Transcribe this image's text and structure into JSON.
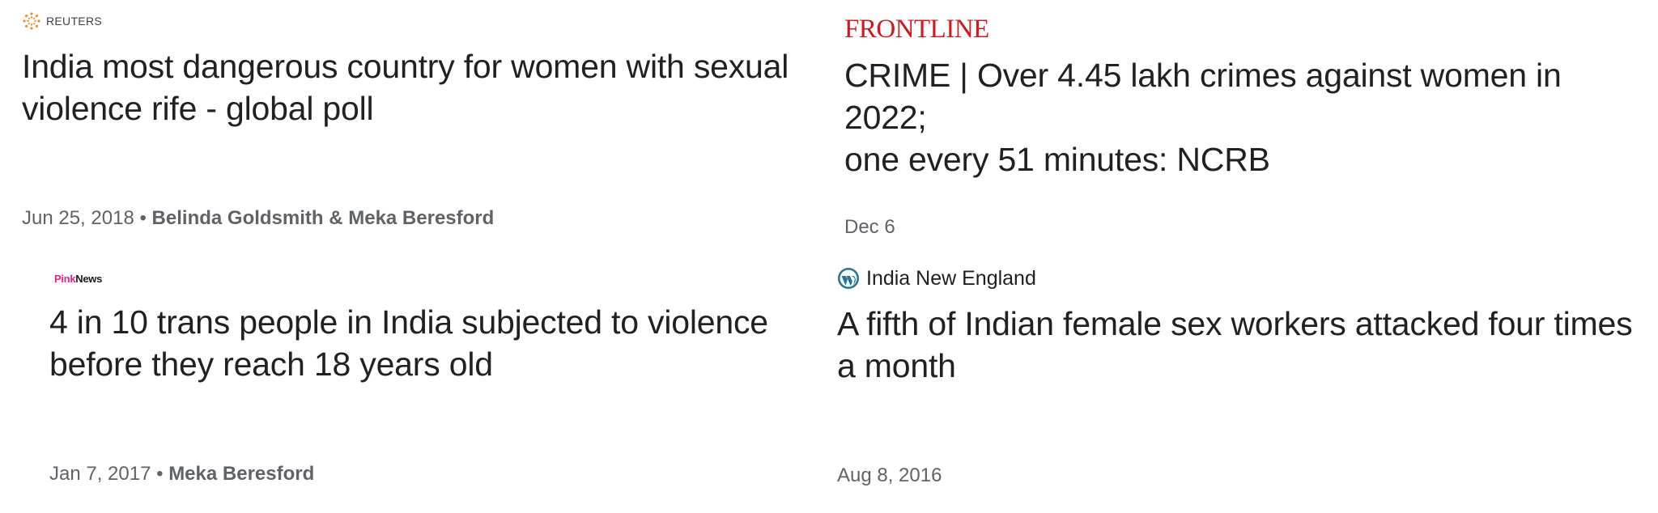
{
  "articles": [
    {
      "source": "REUTERS",
      "source_icon": "reuters-dot-logo-icon",
      "headline_line1": "India most dangerous country for women with sexual",
      "headline_line2": "violence rife - global poll",
      "date": "Jun 25, 2018",
      "separator": " • ",
      "authors": "Belinda Goldsmith & Meka Beresford"
    },
    {
      "source": "FRONTLINE",
      "headline_line1": "CRIME | Over 4.45 lakh crimes against women in 2022;",
      "headline_line2": "one every 51 minutes: NCRB",
      "date": "Dec 6"
    },
    {
      "source_part1": "Pink",
      "source_part2": "News",
      "headline_line1": "4 in 10 trans people in India subjected to violence",
      "headline_line2": "before they reach 18 years old",
      "date": "Jan 7, 2017",
      "separator": " • ",
      "authors": "Meka Beresford"
    },
    {
      "source": "India New England",
      "source_icon": "wordpress-icon",
      "headline_line1": "A fifth of Indian female sex workers attacked four times",
      "headline_line2": "a month",
      "date": "Aug 8, 2016"
    }
  ],
  "colors": {
    "frontline_red": "#d0191e",
    "reuters_orange": "#f28c28",
    "pinknews_pink": "#e91e8c",
    "wordpress_blue": "#21759b",
    "meta_gray": "#5f6368"
  }
}
